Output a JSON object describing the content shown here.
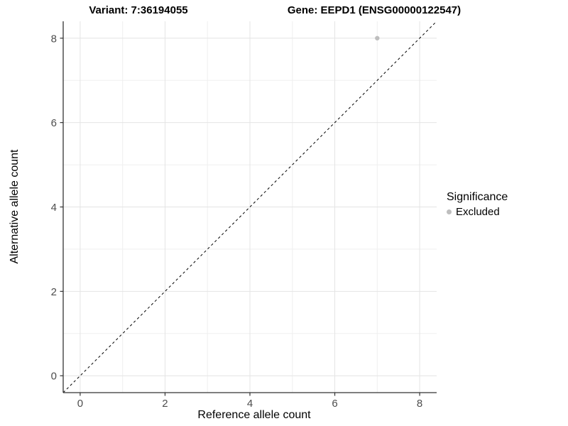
{
  "titles": {
    "variant": "Variant: 7:36194055",
    "gene": "Gene: EEPD1 (ENSG00000122547)"
  },
  "legend": {
    "title": "Significance",
    "items": [
      {
        "label": "Excluded",
        "color": "#bebebe"
      }
    ]
  },
  "colors": {
    "background": "#ffffff",
    "grid_major": "#e4e4e4",
    "grid_minor": "#efefef",
    "axis_line": "#333333",
    "tick_mark": "#333333",
    "tick_label": "#4d4d4d",
    "point": "#bebebe",
    "dashed_line": "#000000"
  },
  "chart_data": {
    "type": "scatter",
    "title": "Variant: 7:36194055 — Gene: EEPD1 (ENSG00000122547)",
    "xlabel": "Reference allele count",
    "ylabel": "Alternative allele count",
    "xlim": [
      -0.4,
      8.4
    ],
    "ylim": [
      -0.4,
      8.4
    ],
    "x_ticks": [
      0,
      2,
      4,
      6,
      8
    ],
    "y_ticks": [
      0,
      2,
      4,
      6,
      8
    ],
    "x_minor_ticks": [
      1,
      3,
      5,
      7
    ],
    "y_minor_ticks": [
      1,
      3,
      5,
      7
    ],
    "grid": true,
    "legend_position": "right",
    "series": [
      {
        "name": "Excluded",
        "color": "#bebebe",
        "points": [
          {
            "x": 7,
            "y": 8
          }
        ]
      }
    ],
    "reference_line": {
      "type": "identity",
      "slope": 1,
      "intercept": 0,
      "style": "dashed",
      "color": "#000000"
    }
  }
}
